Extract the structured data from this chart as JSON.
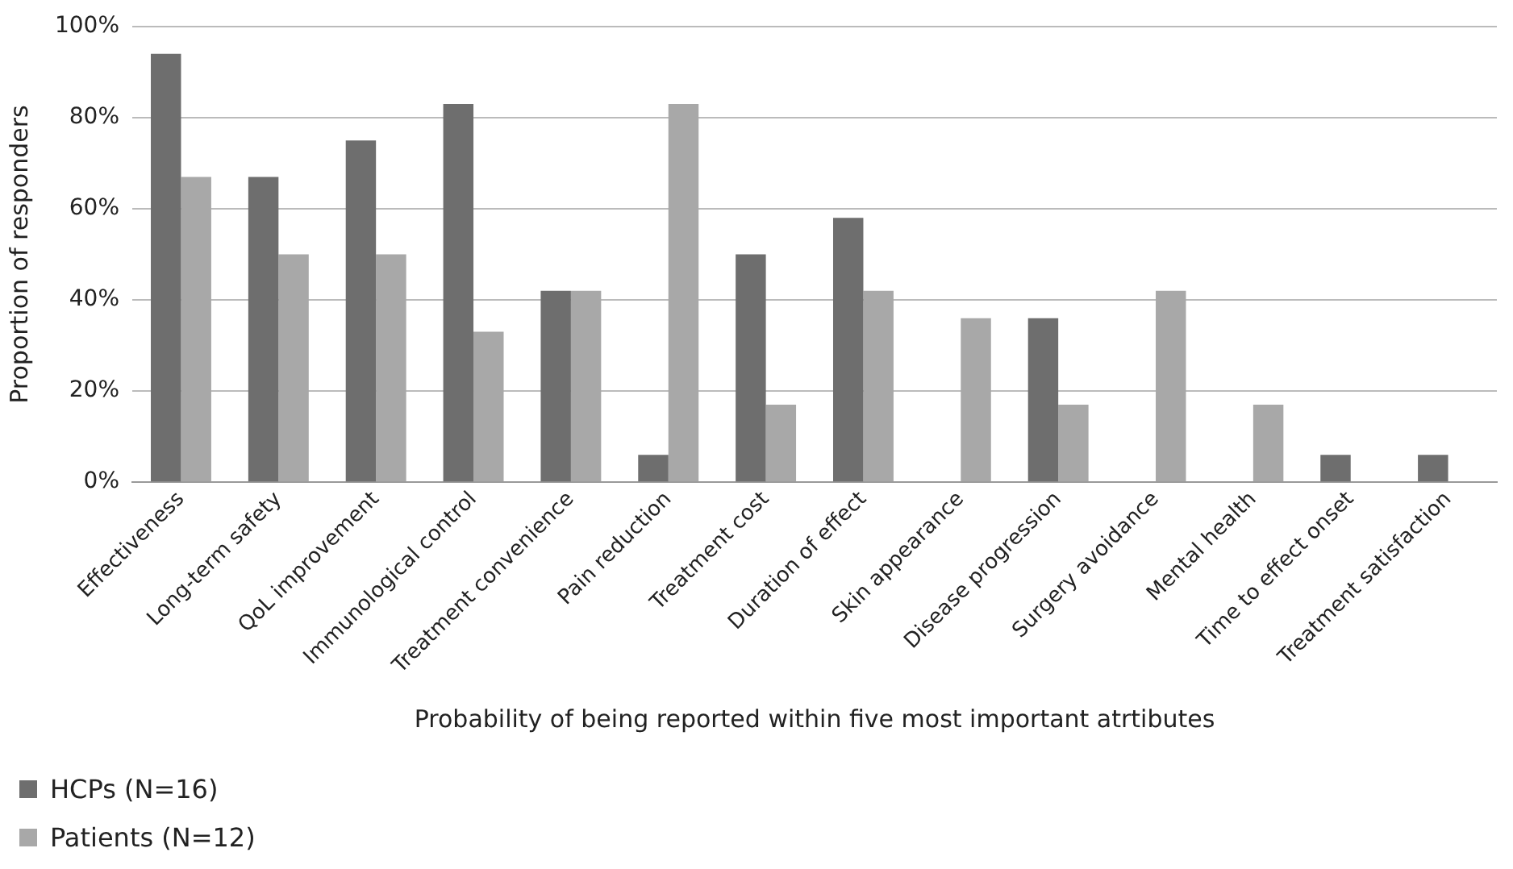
{
  "chart_data": {
    "type": "bar",
    "xlabel": "Probability of being reported within five most important atrtibutes",
    "ylabel": "Proportion of responders",
    "categories": [
      "Effectiveness",
      "Long-term safety",
      "QoL improvement",
      "Immunological control",
      "Treatment convenience",
      "Pain reduction",
      "Treatment cost",
      "Duration of effect",
      "Skin appearance",
      "Disease progression",
      "Surgery avoidance",
      "Mental health",
      "Time to effect onset",
      "Treatment satisfaction"
    ],
    "series": [
      {
        "name": "HCPs (N=16)",
        "color": "#6e6e6e",
        "values": [
          94,
          67,
          75,
          83,
          42,
          6,
          50,
          58,
          0,
          36,
          0,
          0,
          6,
          6
        ]
      },
      {
        "name": "Patients (N=12)",
        "color": "#a8a8a8",
        "values": [
          67,
          50,
          50,
          33,
          42,
          83,
          17,
          42,
          36,
          17,
          42,
          17,
          0,
          0
        ]
      }
    ],
    "ylim": [
      0,
      100
    ],
    "yticks": [
      {
        "value": 0,
        "label": "0%"
      },
      {
        "value": 20,
        "label": "20%"
      },
      {
        "value": 40,
        "label": "40%"
      },
      {
        "value": 60,
        "label": "60%"
      },
      {
        "value": 80,
        "label": "80%"
      },
      {
        "value": 100,
        "label": "100%"
      }
    ],
    "grid": "y",
    "legend": "bottom left"
  }
}
